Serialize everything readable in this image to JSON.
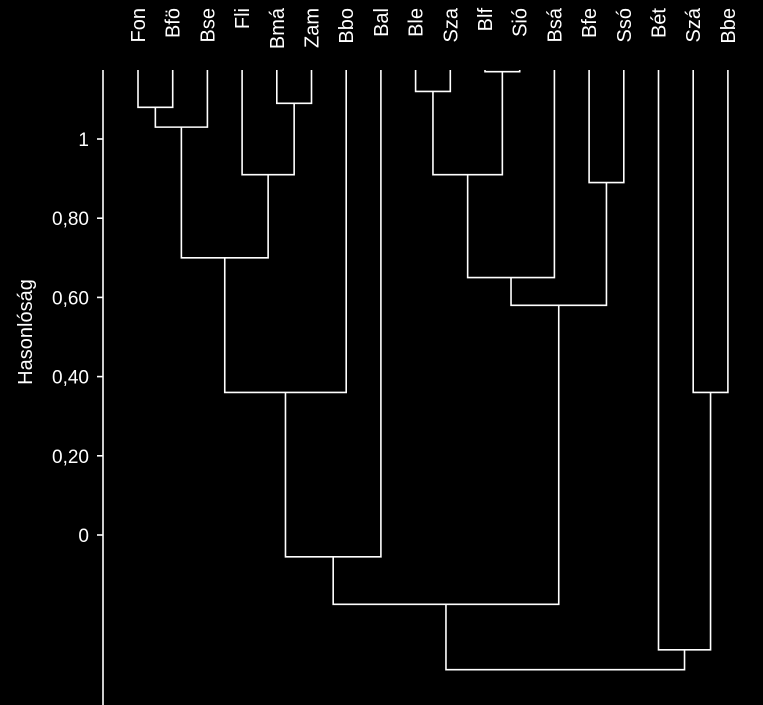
{
  "chart_data": {
    "type": "dendrogram",
    "ylabel": "Hasonlóság",
    "ylim": [
      -0.42,
      1.17
    ],
    "yticks": [
      {
        "value": 1,
        "label": "1"
      },
      {
        "value": 0.8,
        "label": "0,80"
      },
      {
        "value": 0.6,
        "label": "0,60"
      },
      {
        "value": 0.4,
        "label": "0,40"
      },
      {
        "value": 0.2,
        "label": "0,20"
      },
      {
        "value": 0,
        "label": "0"
      }
    ],
    "leaves": [
      "Fon",
      "Bfö",
      "Bse",
      "Fli",
      "Bmá",
      "Zam",
      "Bbo",
      "Bal",
      "Ble",
      "Sza",
      "Blf",
      "Sió",
      "Bsá",
      "Bfe",
      "Ssó",
      "Bét",
      "Szá",
      "Bbe"
    ],
    "merges": [
      {
        "id": "c1",
        "a": "Fon",
        "b": "Bfö",
        "similarity": 1.08
      },
      {
        "id": "c2",
        "a": "c1",
        "b": "Bse",
        "similarity": 1.03
      },
      {
        "id": "c3",
        "a": "Bmá",
        "b": "Zam",
        "similarity": 1.09
      },
      {
        "id": "c4",
        "a": "Fli",
        "b": "c3",
        "similarity": 0.91
      },
      {
        "id": "c5",
        "a": "c2",
        "b": "c4",
        "similarity": 0.7
      },
      {
        "id": "c6",
        "a": "c5",
        "b": "Bbo",
        "similarity": 0.36
      },
      {
        "id": "c7",
        "a": "Ble",
        "b": "Sza",
        "similarity": 1.12
      },
      {
        "id": "c8",
        "a": "Blf",
        "b": "Sió",
        "similarity": 1.17
      },
      {
        "id": "c9",
        "a": "c7",
        "b": "c8",
        "similarity": 0.91
      },
      {
        "id": "c10",
        "a": "c9",
        "b": "Bsá",
        "similarity": 0.65
      },
      {
        "id": "c11",
        "a": "Bfe",
        "b": "Ssó",
        "similarity": 0.89
      },
      {
        "id": "c12",
        "a": "c10",
        "b": "c11",
        "similarity": 0.58
      },
      {
        "id": "c13",
        "a": "c6",
        "b": "Bal",
        "similarity": -0.055
      },
      {
        "id": "c14",
        "a": "c13",
        "b": "c12",
        "similarity": -0.175
      },
      {
        "id": "c15",
        "a": "Szá",
        "b": "Bbe",
        "similarity": 0.36
      },
      {
        "id": "c16",
        "a": "Bét",
        "b": "c15",
        "similarity": -0.29
      },
      {
        "id": "c17",
        "a": "c14",
        "b": "c16",
        "similarity": -0.34
      }
    ]
  }
}
